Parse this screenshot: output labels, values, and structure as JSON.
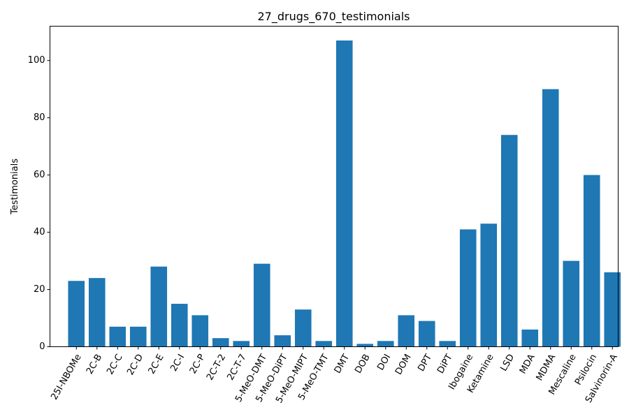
{
  "chart_data": {
    "type": "bar",
    "title": "27_drugs_670_testimonials",
    "xlabel": "",
    "ylabel": "Testimonials",
    "ylim": [
      0,
      112
    ],
    "yticks": [
      0,
      20,
      40,
      60,
      80,
      100
    ],
    "grid": false,
    "bar_color": "#1f77b4",
    "categories": [
      "25I-NBOMe",
      "2C-B",
      "2C-C",
      "2C-D",
      "2C-E",
      "2C-I",
      "2C-P",
      "2C-T-2",
      "2C-T-7",
      "5-MeO-DMT",
      "5-MeO-DiPT",
      "5-MeO-MIPT",
      "5-MeO-TMT",
      "DMT",
      "DOB",
      "DOI",
      "DOM",
      "DPT",
      "DiPT",
      "Ibogaine",
      "Ketamine",
      "LSD",
      "MDA",
      "MDMA",
      "Mescaline",
      "Psilocin",
      "Salvinorin-A"
    ],
    "values": [
      23,
      24,
      7,
      7,
      28,
      15,
      11,
      3,
      2,
      29,
      4,
      13,
      2,
      107,
      1,
      2,
      11,
      9,
      2,
      41,
      43,
      74,
      6,
      90,
      30,
      60,
      26
    ]
  }
}
